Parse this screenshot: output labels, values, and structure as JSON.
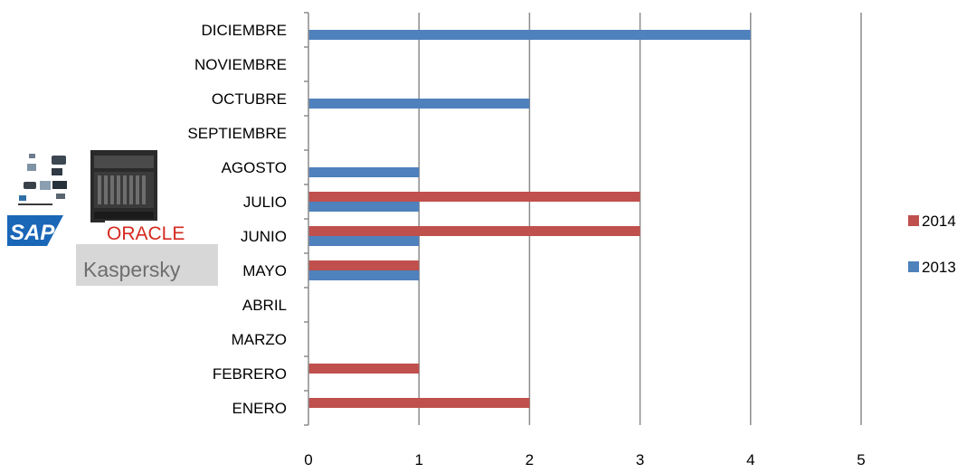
{
  "chart_data": {
    "type": "bar",
    "orientation": "horizontal",
    "categories": [
      "ENERO",
      "FEBRERO",
      "MARZO",
      "ABRIL",
      "MAYO",
      "JUNIO",
      "JULIO",
      "AGOSTO",
      "SEPTIEMBRE",
      "OCTUBRE",
      "NOVIEMBRE",
      "DICIEMBRE"
    ],
    "series": [
      {
        "name": "2013",
        "color": "#4F81BD",
        "values": [
          0,
          0,
          0,
          0,
          1,
          1,
          1,
          1,
          0,
          2,
          0,
          4
        ]
      },
      {
        "name": "2014",
        "color": "#C0504D",
        "values": [
          2,
          1,
          0,
          0,
          1,
          3,
          3,
          0,
          0,
          0,
          0,
          0
        ]
      }
    ],
    "xlim": [
      0,
      5
    ],
    "x_ticks": [
      "0",
      "1",
      "2",
      "3",
      "4",
      "5"
    ],
    "grid": "vertical major gridlines",
    "legend_position": "right",
    "legend_order": [
      "2014",
      "2013"
    ]
  },
  "logos": {
    "sap": "SAP",
    "oracle": "ORACLE",
    "kaspersky": "Kaspersky"
  }
}
